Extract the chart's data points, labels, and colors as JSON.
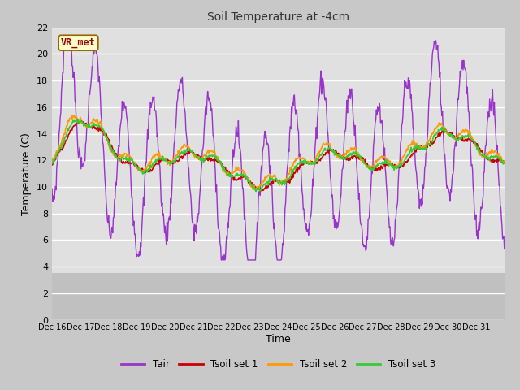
{
  "title": "Soil Temperature at -4cm",
  "xlabel": "Time",
  "ylabel": "Temperature (C)",
  "ylim": [
    0,
    22
  ],
  "yticks": [
    0,
    2,
    4,
    6,
    8,
    10,
    12,
    14,
    16,
    18,
    20,
    22
  ],
  "x_labels": [
    "Dec 16",
    "Dec 17",
    "Dec 18",
    "Dec 19",
    "Dec 20",
    "Dec 21",
    "Dec 22",
    "Dec 23",
    "Dec 24",
    "Dec 25",
    "Dec 26",
    "Dec 27",
    "Dec 28",
    "Dec 29",
    "Dec 30",
    "Dec 31"
  ],
  "colors": {
    "Tair": "#9933cc",
    "Tsoil1": "#cc0000",
    "Tsoil2": "#ff9900",
    "Tsoil3": "#33cc33"
  },
  "annotation_text": "VR_met",
  "annotation_bg": "#ffffcc",
  "annotation_border": "#996600",
  "plot_bg_upper": "#e8e8e8",
  "plot_bg_lower": "#d0d0d0",
  "legend_labels": [
    "Tair",
    "Tsoil set 1",
    "Tsoil set 2",
    "Tsoil set 3"
  ]
}
